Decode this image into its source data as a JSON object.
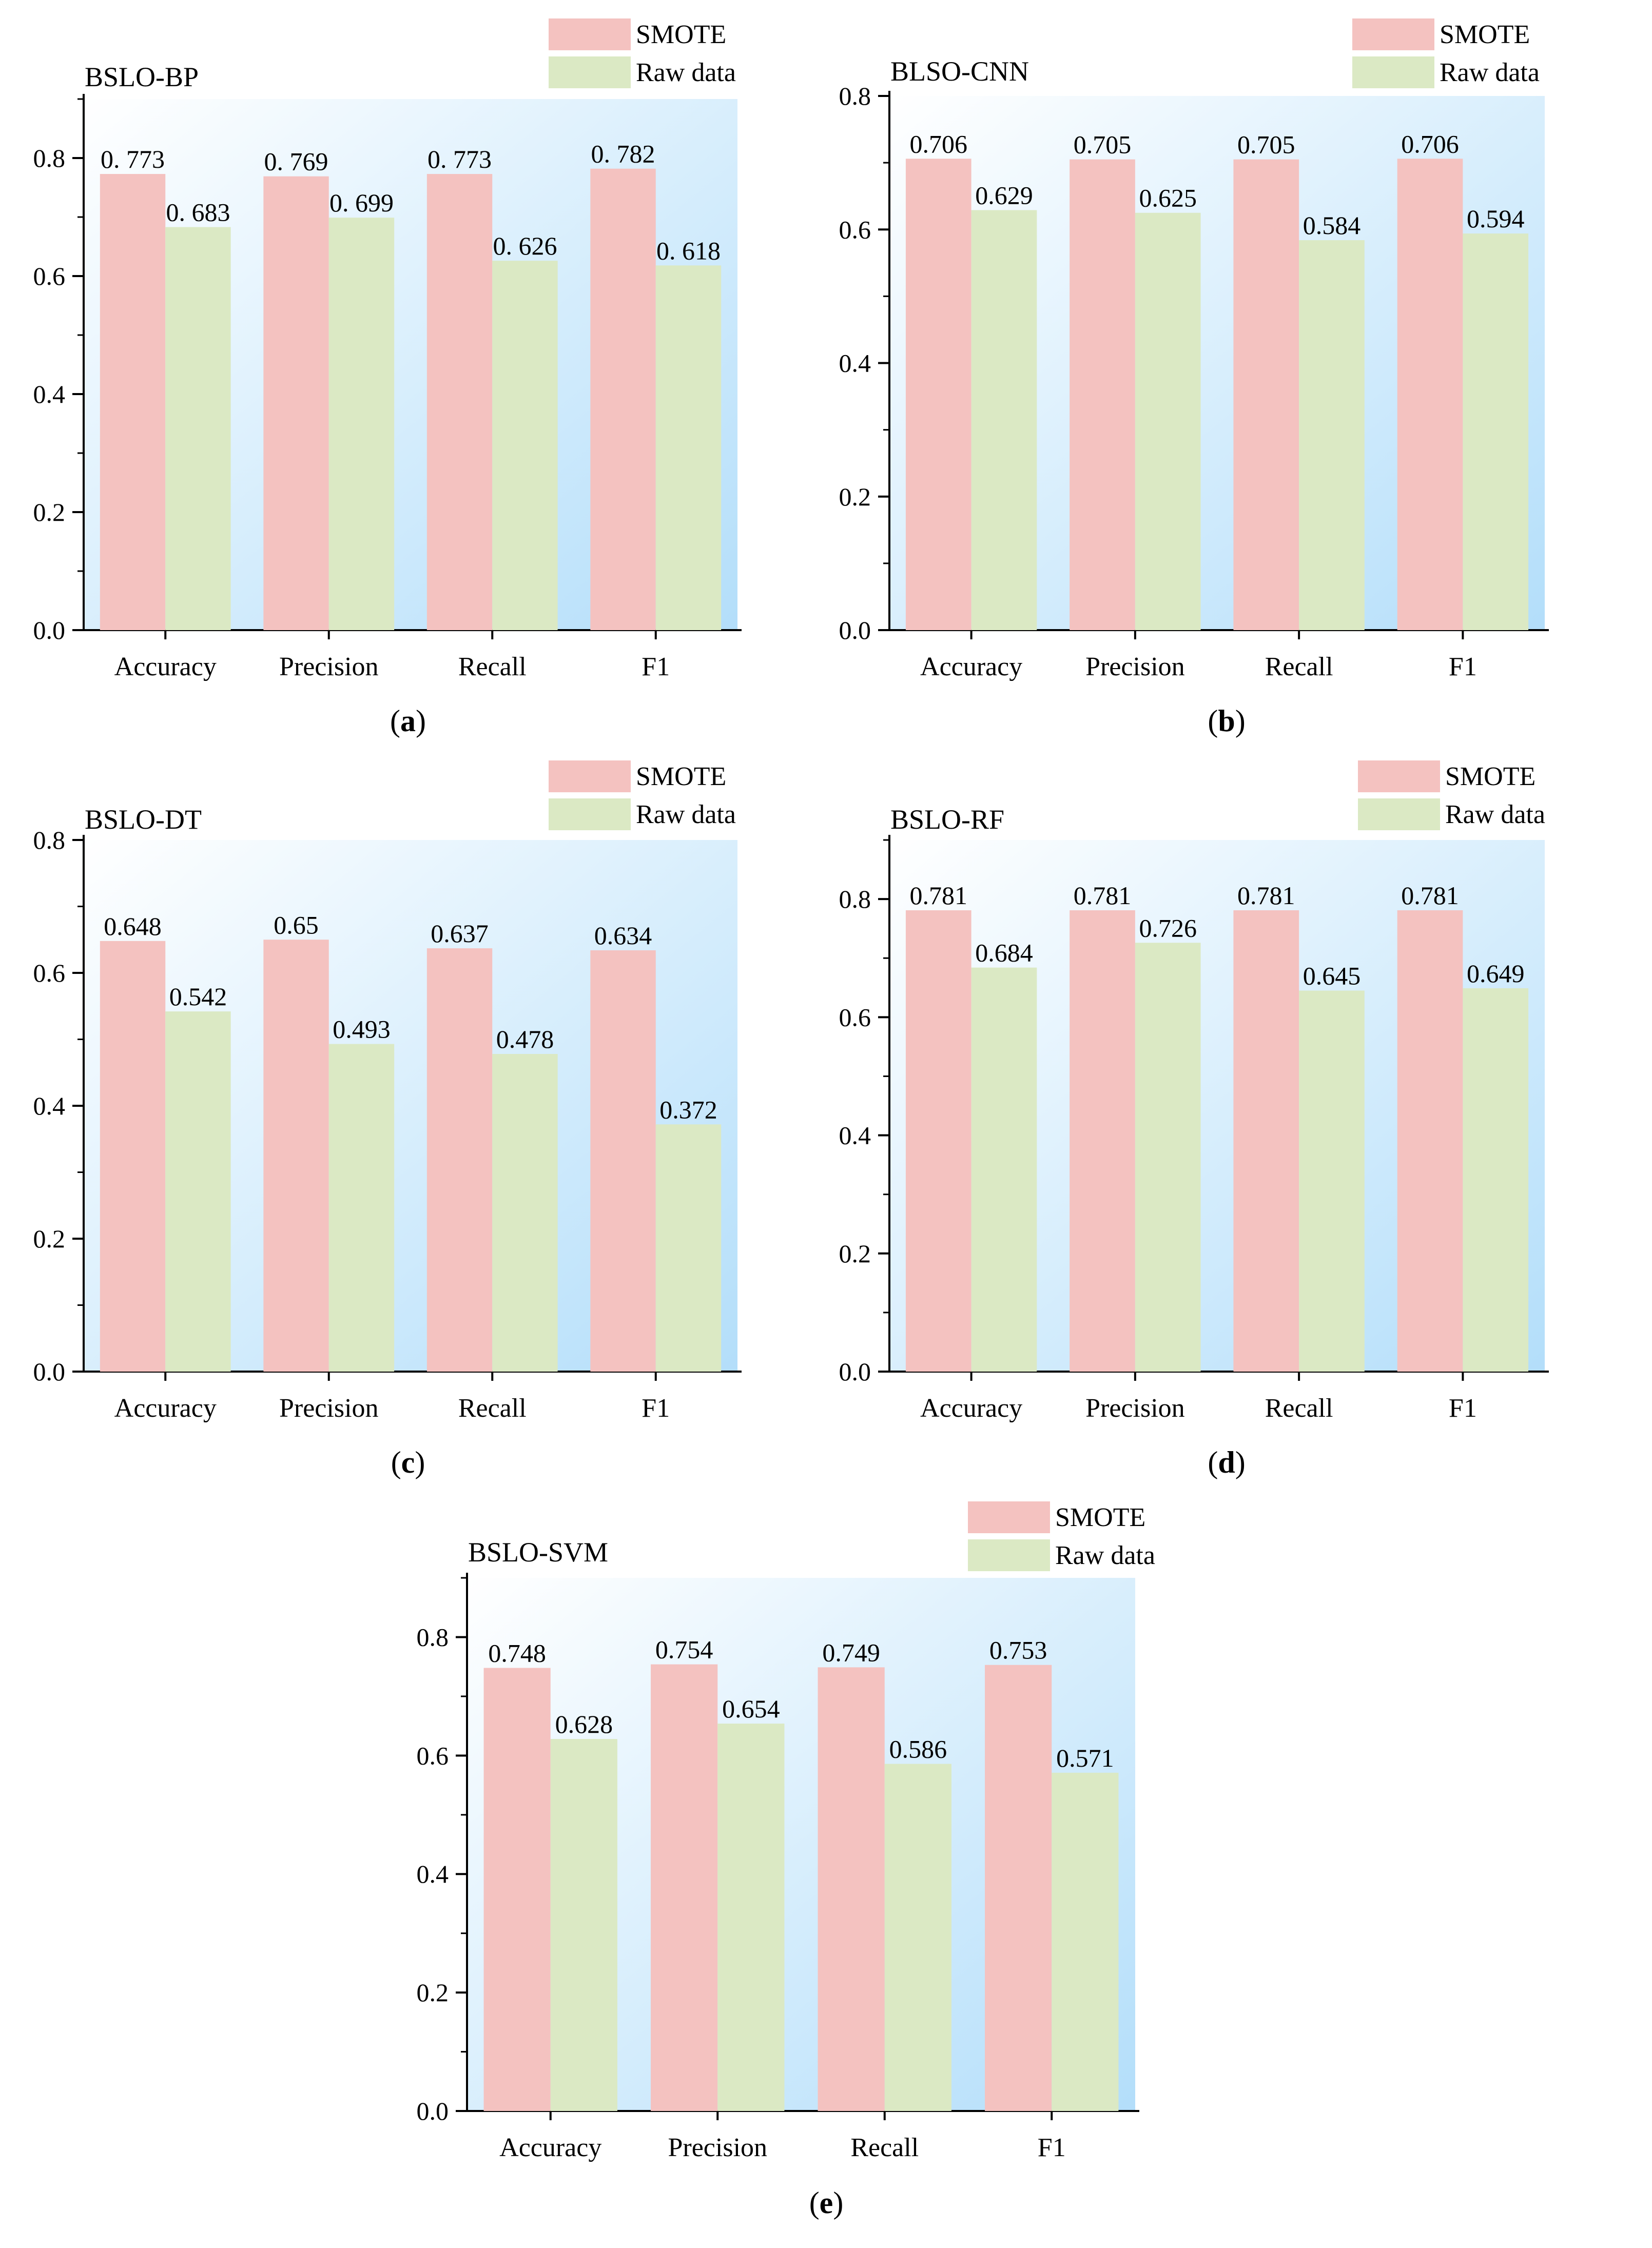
{
  "colors": {
    "smote": "#f4c2c0",
    "raw": "#dbe9c4",
    "bg_light": "#ffffff",
    "bg_blue": "#b3defa",
    "axis": "#000000"
  },
  "legend": {
    "smote": "SMOTE",
    "raw": "Raw data"
  },
  "chart_data": [
    {
      "type": "bar",
      "title": "BSLO-BP",
      "caption": "a",
      "categories": [
        "Accuracy",
        "Precision",
        "Recall",
        "F1"
      ],
      "series": [
        {
          "name": "SMOTE",
          "values": [
            0.773,
            0.769,
            0.773,
            0.782
          ],
          "labels": [
            "0. 773",
            "0. 769",
            "0. 773",
            "0. 782"
          ]
        },
        {
          "name": "Raw data",
          "values": [
            0.683,
            0.699,
            0.626,
            0.618
          ],
          "labels": [
            "0. 683",
            "0. 699",
            "0. 626",
            "0. 618"
          ]
        }
      ],
      "ylim": [
        0,
        0.9
      ],
      "yticks": [
        "0.0",
        "0.2",
        "0.4",
        "0.6",
        "0.8"
      ],
      "legend_position": "top-right"
    },
    {
      "type": "bar",
      "title": "BLSO-CNN",
      "caption": "b",
      "categories": [
        "Accuracy",
        "Precision",
        "Recall",
        "F1"
      ],
      "series": [
        {
          "name": "SMOTE",
          "values": [
            0.706,
            0.705,
            0.705,
            0.706
          ],
          "labels": [
            "0.706",
            "0.705",
            "0.705",
            "0.706"
          ]
        },
        {
          "name": "Raw data",
          "values": [
            0.629,
            0.625,
            0.584,
            0.594
          ],
          "labels": [
            "0.629",
            "0.625",
            "0.584",
            "0.594"
          ]
        }
      ],
      "ylim": [
        0,
        0.8
      ],
      "yticks": [
        "0.0",
        "0.2",
        "0.4",
        "0.6",
        "0.8"
      ],
      "legend_position": "top-right"
    },
    {
      "type": "bar",
      "title": "BSLO-DT",
      "caption": "c",
      "categories": [
        "Accuracy",
        "Precision",
        "Recall",
        "F1"
      ],
      "series": [
        {
          "name": "SMOTE",
          "values": [
            0.648,
            0.65,
            0.637,
            0.634
          ],
          "labels": [
            "0.648",
            "0.65",
            "0.637",
            "0.634"
          ]
        },
        {
          "name": "Raw data",
          "values": [
            0.542,
            0.493,
            0.478,
            0.372
          ],
          "labels": [
            "0.542",
            "0.493",
            "0.478",
            "0.372"
          ]
        }
      ],
      "ylim": [
        0,
        0.8
      ],
      "yticks": [
        "0.0",
        "0.2",
        "0.4",
        "0.6",
        "0.8"
      ],
      "legend_position": "top-right"
    },
    {
      "type": "bar",
      "title": "BSLO-RF",
      "caption": "d",
      "categories": [
        "Accuracy",
        "Precision",
        "Recall",
        "F1"
      ],
      "series": [
        {
          "name": "SMOTE",
          "values": [
            0.781,
            0.781,
            0.781,
            0.781
          ],
          "labels": [
            "0.781",
            "0.781",
            "0.781",
            "0.781"
          ]
        },
        {
          "name": "Raw data",
          "values": [
            0.684,
            0.726,
            0.645,
            0.649
          ],
          "labels": [
            "0.684",
            "0.726",
            "0.645",
            "0.649"
          ]
        }
      ],
      "ylim": [
        0,
        0.9
      ],
      "yticks": [
        "0.0",
        "0.2",
        "0.4",
        "0.6",
        "0.8"
      ],
      "legend_position": "top-right"
    },
    {
      "type": "bar",
      "title": "BSLO-SVM",
      "caption": "e",
      "categories": [
        "Accuracy",
        "Precision",
        "Recall",
        "F1"
      ],
      "series": [
        {
          "name": "SMOTE",
          "values": [
            0.748,
            0.754,
            0.749,
            0.753
          ],
          "labels": [
            "0.748",
            "0.754",
            "0.749",
            "0.753"
          ]
        },
        {
          "name": "Raw data",
          "values": [
            0.628,
            0.654,
            0.586,
            0.571
          ],
          "labels": [
            "0.628",
            "0.654",
            "0.586",
            "0.571"
          ]
        }
      ],
      "ylim": [
        0,
        0.9
      ],
      "yticks": [
        "0.0",
        "0.2",
        "0.4",
        "0.6",
        "0.8"
      ],
      "legend_position": "top-right"
    }
  ]
}
